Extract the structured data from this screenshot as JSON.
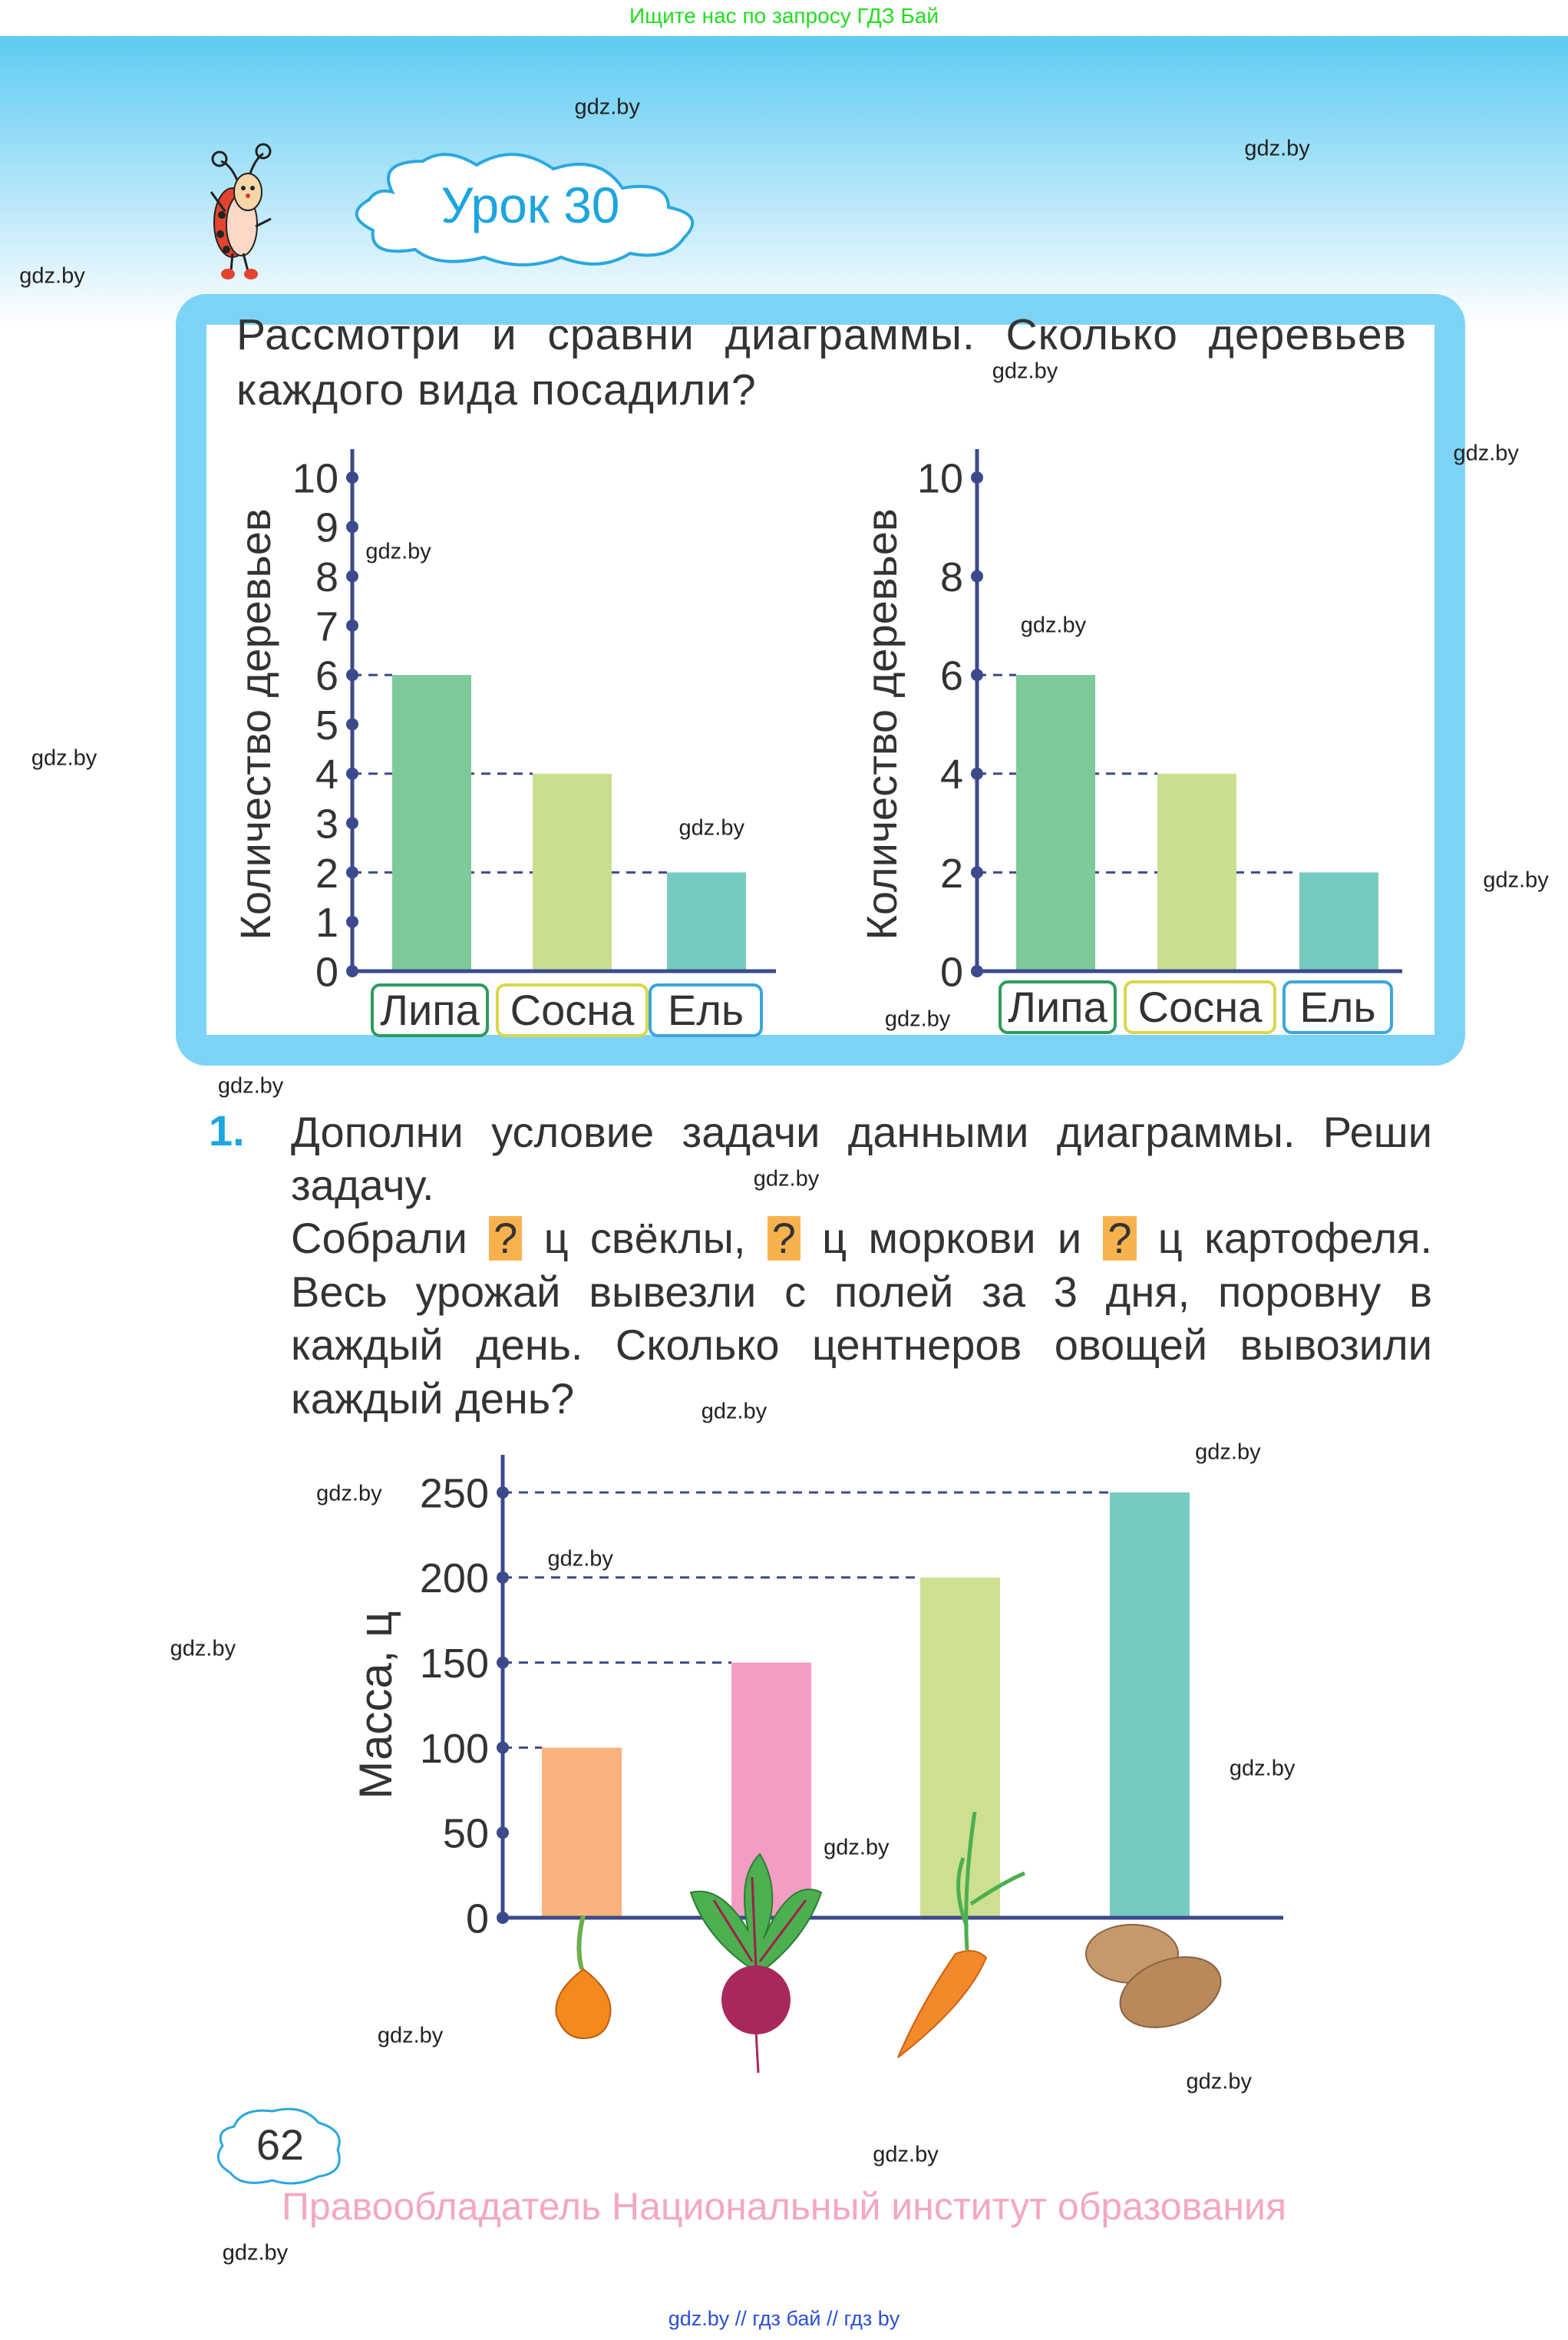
{
  "banner": "Ищите нас по запросу ГДЗ Бай",
  "lesson_title": "Урок 30",
  "task": {
    "title_line1": "Рассмотри и сравни диаграммы. Сколько деревьев",
    "title_line2": "каждого вида посадили?"
  },
  "exercise": {
    "number": "1.",
    "line1": "Дополни условие задачи данными диаграммы. Реши",
    "line2": "задачу.",
    "line3_a": "Собрали ",
    "q": "?",
    "line3_b": " ц свёклы, ",
    "line3_c": " ц моркови и ",
    "line3_d": " ц картофеля.",
    "line4": "Весь урожай вывезли с полей за 3 дня, поровну в",
    "line5": "каждый день. Сколько центнеров овощей вывозили",
    "line6": "каждый день?"
  },
  "chart_data": [
    {
      "type": "bar",
      "ylabel": "Количество деревьев",
      "categories": [
        "Липа",
        "Сосна",
        "Ель"
      ],
      "values": [
        6,
        4,
        2
      ],
      "ylim": [
        0,
        10
      ],
      "yticks": [
        0,
        1,
        2,
        3,
        4,
        5,
        6,
        7,
        8,
        9,
        10
      ],
      "colors": [
        "#7dc99a",
        "#c9df8f",
        "#76cbbf"
      ],
      "label_borders": [
        "#2e9b5c",
        "#d8d84c",
        "#3aa6dc"
      ]
    },
    {
      "type": "bar",
      "ylabel": "Количество деревьев",
      "categories": [
        "Липа",
        "Сосна",
        "Ель"
      ],
      "values": [
        6,
        4,
        2
      ],
      "ylim": [
        0,
        10
      ],
      "yticks": [
        0,
        2,
        4,
        6,
        8,
        10
      ],
      "colors": [
        "#7dc99a",
        "#c9df8f",
        "#76cbbf"
      ],
      "label_borders": [
        "#2e9b5c",
        "#d8d84c",
        "#3aa6dc"
      ]
    },
    {
      "type": "bar",
      "ylabel": "Масса, ц",
      "categories": [
        "onion",
        "beet",
        "carrot",
        "potato"
      ],
      "values": [
        100,
        150,
        200,
        250
      ],
      "ylim": [
        0,
        250
      ],
      "yticks": [
        0,
        50,
        100,
        150,
        200,
        250
      ],
      "colors": [
        "#f9b27c",
        "#f39dc5",
        "#cde08f",
        "#76cbbf"
      ]
    }
  ],
  "page_number": "62",
  "copyright": "Правообладатель Национальный институт образования",
  "footer": "gdz.by  //  гдз бай  //  гдз by",
  "watermark": "gdz.by",
  "colors": {
    "axis": "#3c4a8c",
    "frame": "#7dd3f5",
    "cloud": "#2aa7df",
    "question_box": "#f7b24f"
  }
}
